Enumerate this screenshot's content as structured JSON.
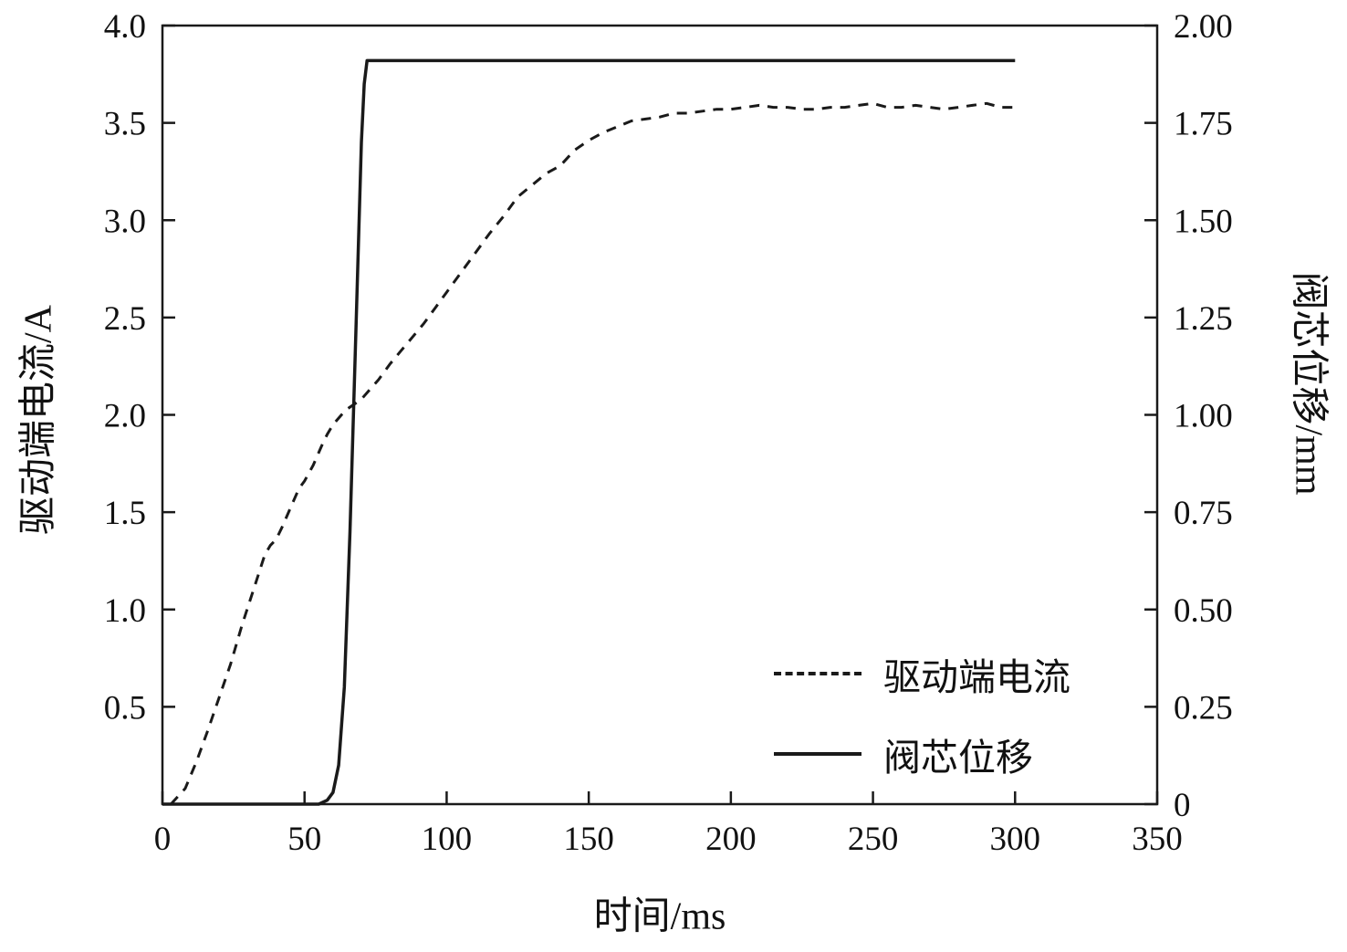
{
  "chart_data": {
    "type": "line",
    "title": "",
    "xlabel": "时间/ms",
    "ylabel_left": "驱动端电流/A",
    "ylabel_right": "阀芯位移/mm",
    "xlim": [
      0,
      350
    ],
    "ylim_left": [
      0,
      4.0
    ],
    "ylim_right": [
      0,
      2.0
    ],
    "grid": "off",
    "legend_position": "inside lower right",
    "line_color": "#1a1a1a",
    "x_ticks": {
      "values": [
        0,
        50,
        100,
        150,
        200,
        250,
        300,
        350
      ],
      "labels": [
        "0",
        "50",
        "100",
        "150",
        "200",
        "250",
        "300",
        "350"
      ]
    },
    "left_ticks": {
      "values": [
        0.5,
        1.0,
        1.5,
        2.0,
        2.5,
        3.0,
        3.5,
        4.0
      ],
      "labels": [
        "0.5",
        "1.0",
        "1.5",
        "2.0",
        "2.5",
        "3.0",
        "3.5",
        "4.0"
      ]
    },
    "right_ticks": {
      "values": [
        0,
        0.25,
        0.5,
        0.75,
        1.0,
        1.25,
        1.5,
        1.75,
        2.0
      ],
      "labels": [
        "0",
        "0.25",
        "0.50",
        "0.75",
        "1.00",
        "1.25",
        "1.50",
        "1.75",
        "2.00"
      ]
    },
    "series": [
      {
        "name": "驱动端电流",
        "axis": "left",
        "style": "dashed",
        "x": [
          3,
          8,
          12,
          16,
          20,
          24,
          28,
          32,
          36,
          38,
          40,
          42,
          45,
          48,
          50,
          53,
          56,
          58,
          60,
          63,
          65,
          68,
          70,
          73,
          76,
          80,
          84,
          88,
          92,
          96,
          100,
          105,
          110,
          115,
          120,
          125,
          130,
          135,
          140,
          145,
          150,
          155,
          160,
          165,
          170,
          175,
          180,
          185,
          190,
          195,
          200,
          205,
          210,
          215,
          220,
          225,
          230,
          235,
          240,
          245,
          250,
          255,
          260,
          265,
          270,
          275,
          280,
          285,
          290,
          295,
          300
        ],
        "y": [
          0.0,
          0.08,
          0.22,
          0.38,
          0.55,
          0.72,
          0.92,
          1.1,
          1.28,
          1.33,
          1.36,
          1.42,
          1.52,
          1.62,
          1.66,
          1.74,
          1.84,
          1.9,
          1.95,
          2.0,
          2.03,
          2.06,
          2.08,
          2.13,
          2.18,
          2.26,
          2.33,
          2.4,
          2.47,
          2.55,
          2.63,
          2.73,
          2.83,
          2.93,
          3.02,
          3.12,
          3.18,
          3.24,
          3.28,
          3.36,
          3.41,
          3.45,
          3.48,
          3.51,
          3.52,
          3.53,
          3.55,
          3.55,
          3.56,
          3.57,
          3.57,
          3.58,
          3.59,
          3.58,
          3.58,
          3.57,
          3.57,
          3.58,
          3.58,
          3.59,
          3.6,
          3.58,
          3.58,
          3.59,
          3.58,
          3.57,
          3.58,
          3.59,
          3.6,
          3.58,
          3.58
        ]
      },
      {
        "name": "阀芯位移",
        "axis": "right",
        "style": "solid",
        "x": [
          0,
          55,
          58,
          60,
          62,
          64,
          66,
          68,
          70,
          71,
          72,
          75,
          300
        ],
        "y": [
          0,
          0,
          0.01,
          0.03,
          0.1,
          0.3,
          0.7,
          1.2,
          1.7,
          1.85,
          1.91,
          1.91,
          1.91
        ]
      }
    ]
  }
}
